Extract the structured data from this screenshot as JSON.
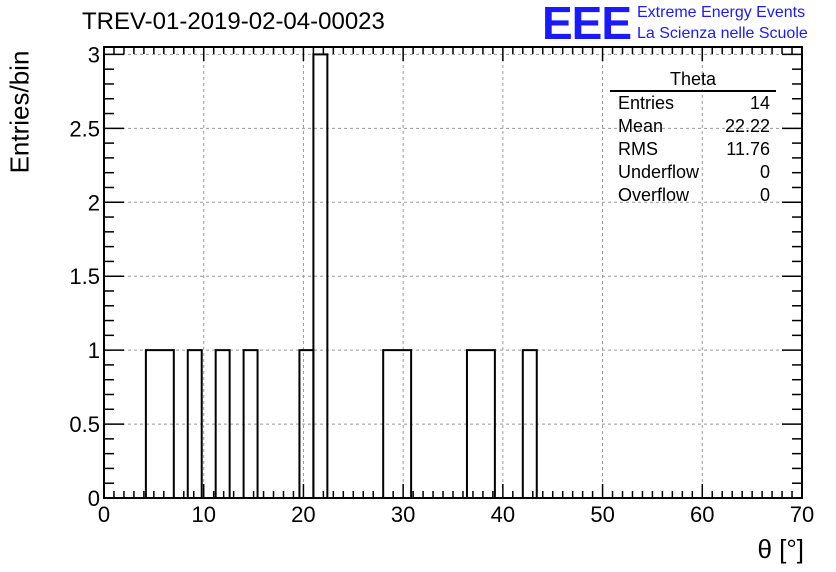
{
  "header": {
    "title": "TREV-01-2019-02-04-00023",
    "logo_text": "EEE",
    "logo_line1": "Extreme Energy Events",
    "logo_line2": "La Scienza nelle Scuole",
    "logo_color": "#1a1aff"
  },
  "stats": {
    "name": "Theta",
    "rows": [
      {
        "label": "Entries",
        "value": "14"
      },
      {
        "label": "Mean",
        "value": "22.22"
      },
      {
        "label": "RMS",
        "value": "11.76"
      },
      {
        "label": "Underflow",
        "value": "0"
      },
      {
        "label": "Overflow",
        "value": "0"
      }
    ]
  },
  "chart_data": {
    "type": "bar",
    "histogram": true,
    "xlabel": "θ [°]",
    "ylabel": "Entries/bin",
    "xlim": [
      0,
      70
    ],
    "ylim": [
      0,
      3.05
    ],
    "grid": true,
    "x_ticks": [
      0,
      10,
      20,
      30,
      40,
      50,
      60,
      70
    ],
    "y_ticks": [
      0,
      0.5,
      1,
      1.5,
      2,
      2.5,
      3
    ],
    "y_tick_labels": [
      "0",
      "0.5",
      "1",
      "1.5",
      "2",
      "2.5",
      "3"
    ],
    "bins": [
      {
        "x0": 4.2,
        "x1": 7.0,
        "value": 1
      },
      {
        "x0": 8.4,
        "x1": 9.8,
        "value": 1
      },
      {
        "x0": 11.2,
        "x1": 12.6,
        "value": 1
      },
      {
        "x0": 14.0,
        "x1": 15.4,
        "value": 1
      },
      {
        "x0": 19.6,
        "x1": 21.0,
        "value": 1
      },
      {
        "x0": 21.0,
        "x1": 22.4,
        "value": 3
      },
      {
        "x0": 28.0,
        "x1": 30.8,
        "value": 1
      },
      {
        "x0": 36.4,
        "x1": 39.2,
        "value": 1
      },
      {
        "x0": 42.0,
        "x1": 43.4,
        "value": 1
      }
    ]
  }
}
